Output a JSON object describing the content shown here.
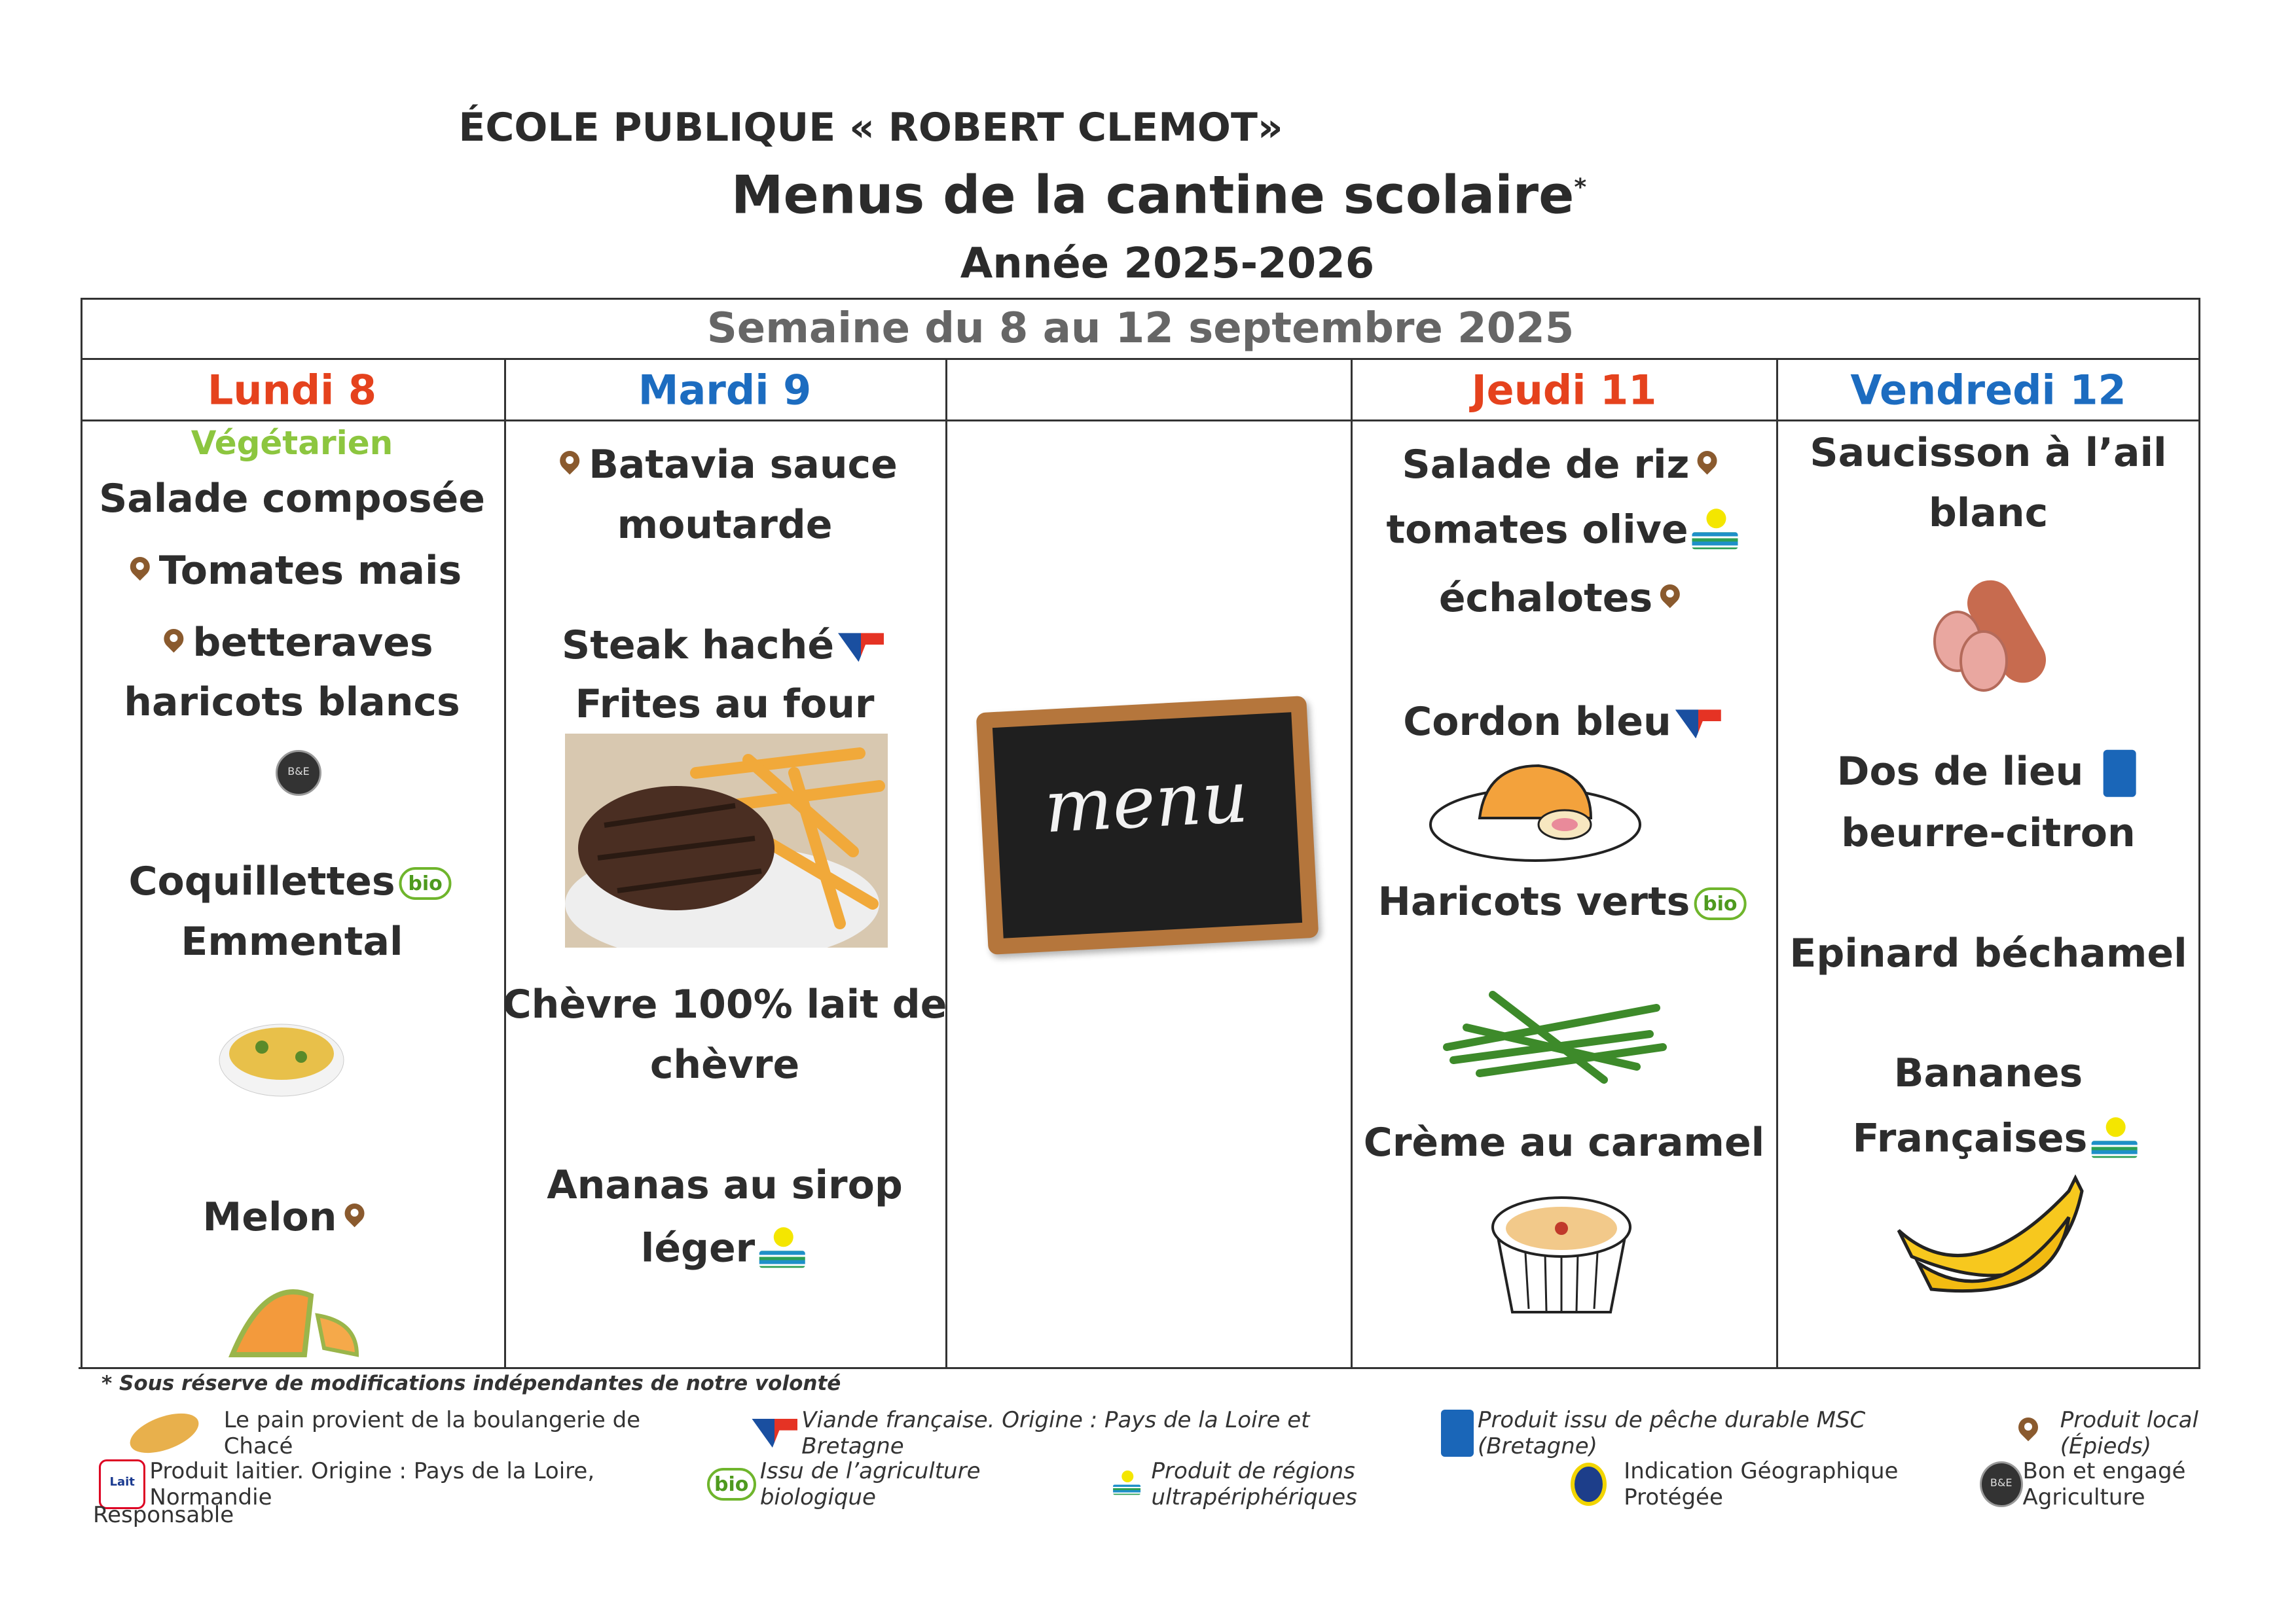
{
  "header": {
    "school": "ÉCOLE PUBLIQUE « ROBERT CLEMOT»",
    "title": "Menus de la cantine scolaire",
    "title_mark": "*",
    "year": "Année 2025-2026"
  },
  "week": "Semaine du 8 au 12 septembre 2025",
  "days": [
    {
      "label": "Lundi 8",
      "color": "#e5421d",
      "tag": "Végétarien",
      "items": [
        "Salade composée",
        "Tomates mais",
        "betteraves",
        "haricots blancs",
        "Coquillettes",
        "Emmental",
        "Melon"
      ]
    },
    {
      "label": "Mardi 9",
      "color": "#1c6cc0",
      "items": [
        "Batavia sauce",
        "moutarde",
        "Steak haché",
        "Frites au four",
        "Chèvre 100% lait de",
        "chèvre",
        "Ananas au sirop",
        "léger"
      ]
    },
    {
      "label": "",
      "board_text": "menu"
    },
    {
      "label": "Jeudi 11",
      "color": "#e5421d",
      "items": [
        "Salade de riz",
        "tomates olive",
        "échalotes",
        "Cordon bleu",
        "Haricots verts",
        "Crème au caramel"
      ]
    },
    {
      "label": "Vendredi 12",
      "color": "#1c6cc0",
      "items": [
        "Saucisson à l’ail",
        "blanc",
        "Dos de lieu",
        "beurre-citron",
        "Epinard béchamel",
        "Bananes",
        "Françaises"
      ]
    }
  ],
  "footer": {
    "note": "* Sous réserve de modifications indépendantes de notre volonté",
    "legend": [
      {
        "icon": "bread-icon",
        "text": "Le pain provient de la boulangerie de Chacé"
      },
      {
        "icon": "viande-francaise-icon",
        "text": "Viande française. Origine : Pays de la Loire et Bretagne"
      },
      {
        "icon": "msc-icon",
        "text": "Produit issu de pêche durable MSC  (Bretagne)"
      },
      {
        "icon": "local-pin-icon",
        "text": "Produit local (Épieds)"
      },
      {
        "icon": "lait-france-icon",
        "text": "Produit laitier. Origine : Pays de la Loire, Normandie"
      },
      {
        "icon": "bio-icon",
        "text": "Issu de l’agriculture biologique"
      },
      {
        "icon": "rup-icon",
        "text": "Produit de régions ultrapériphériques"
      },
      {
        "icon": "igp-icon",
        "text": "Indication Géographique Protégée"
      },
      {
        "icon": "bon-engage-icon",
        "text": "Bon et engagé Agriculture"
      },
      {
        "icon": "",
        "text": "Responsable"
      }
    ]
  }
}
